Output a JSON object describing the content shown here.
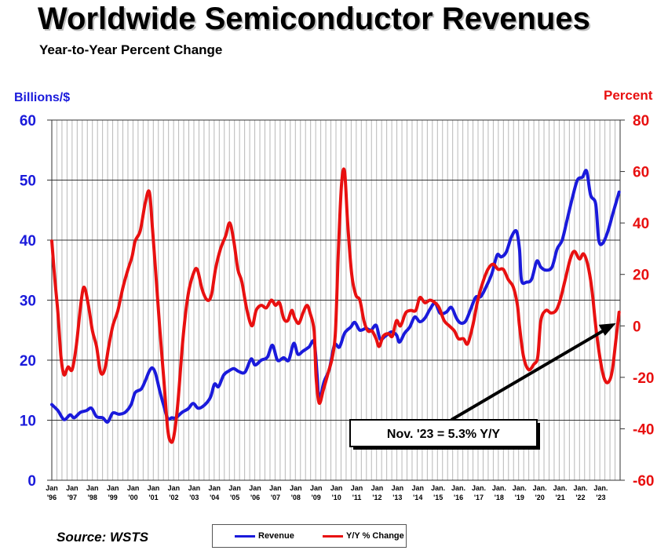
{
  "title": "Worldwide Semiconductor Revenues",
  "subtitle": "Year-to-Year Percent Change",
  "source": "Source: WSTS",
  "chart_data": {
    "type": "line",
    "left_axis": {
      "label": "Billions/$",
      "range": [
        0,
        60
      ],
      "ticks": [
        "0",
        "10",
        "20",
        "30",
        "40",
        "50",
        "60"
      ],
      "color": "#1a1adb"
    },
    "right_axis": {
      "label": "Percent",
      "range": [
        -60,
        80
      ],
      "ticks": [
        "-60",
        "-40",
        "-20",
        "0",
        "20",
        "40",
        "60",
        "80"
      ],
      "color": "#e81010"
    },
    "x_ticks": [
      {
        "top": "Jan",
        "bottom": "'96"
      },
      {
        "top": "Jan",
        "bottom": "'97"
      },
      {
        "top": "Jan",
        "bottom": "'98"
      },
      {
        "top": "Jan",
        "bottom": "'99"
      },
      {
        "top": "Jan",
        "bottom": "'00"
      },
      {
        "top": "Jan",
        "bottom": "'01"
      },
      {
        "top": "Jan",
        "bottom": "'02"
      },
      {
        "top": "Jan",
        "bottom": "'03"
      },
      {
        "top": "Jan",
        "bottom": "'04"
      },
      {
        "top": "Jan",
        "bottom": "'05"
      },
      {
        "top": "Jan",
        "bottom": "'06"
      },
      {
        "top": "Jan",
        "bottom": "'07"
      },
      {
        "top": "Jan",
        "bottom": "'08"
      },
      {
        "top": "Jan",
        "bottom": "'09"
      },
      {
        "top": "Jan",
        "bottom": "'10"
      },
      {
        "top": "Jan",
        "bottom": "'11"
      },
      {
        "top": "Jan",
        "bottom": "'12"
      },
      {
        "top": "Jan",
        "bottom": "'13"
      },
      {
        "top": "Jan",
        "bottom": "'14"
      },
      {
        "top": "Jan.",
        "bottom": "'15"
      },
      {
        "top": "Jan.",
        "bottom": "'16"
      },
      {
        "top": "Jan.",
        "bottom": "'17"
      },
      {
        "top": "Jan.",
        "bottom": "'18"
      },
      {
        "top": "Jan.",
        "bottom": "'19"
      },
      {
        "top": "Jan.",
        "bottom": "'20"
      },
      {
        "top": "Jan.",
        "bottom": "'21"
      },
      {
        "top": "Jan.",
        "bottom": "'22"
      },
      {
        "top": "Jan.",
        "bottom": "'23"
      }
    ],
    "x_range": [
      1996.0,
      2023.95
    ],
    "vertical_grid": true,
    "legend_placement": "bottom",
    "series": [
      {
        "name": "Revenue",
        "axis": "left",
        "color": "#1a1adb",
        "points": [
          [
            1996.0,
            12.6
          ],
          [
            1996.3,
            11.6
          ],
          [
            1996.6,
            10.1
          ],
          [
            1996.9,
            10.9
          ],
          [
            1997.1,
            10.4
          ],
          [
            1997.4,
            11.3
          ],
          [
            1997.7,
            11.6
          ],
          [
            1997.95,
            12.0
          ],
          [
            1998.2,
            10.6
          ],
          [
            1998.5,
            10.4
          ],
          [
            1998.75,
            9.7
          ],
          [
            1999.0,
            11.2
          ],
          [
            1999.3,
            11.0
          ],
          [
            1999.6,
            11.3
          ],
          [
            1999.9,
            12.6
          ],
          [
            2000.1,
            14.6
          ],
          [
            2000.4,
            15.2
          ],
          [
            2000.6,
            16.6
          ],
          [
            2000.8,
            18.2
          ],
          [
            2000.95,
            18.7
          ],
          [
            2001.1,
            17.8
          ],
          [
            2001.3,
            15.0
          ],
          [
            2001.5,
            12.5
          ],
          [
            2001.7,
            10.3
          ],
          [
            2001.9,
            10.4
          ],
          [
            2002.1,
            10.4
          ],
          [
            2002.4,
            11.3
          ],
          [
            2002.7,
            11.9
          ],
          [
            2002.95,
            12.8
          ],
          [
            2003.2,
            12.0
          ],
          [
            2003.5,
            12.5
          ],
          [
            2003.8,
            13.8
          ],
          [
            2004.0,
            16.0
          ],
          [
            2004.2,
            15.6
          ],
          [
            2004.45,
            17.5
          ],
          [
            2004.7,
            18.2
          ],
          [
            2004.95,
            18.6
          ],
          [
            2005.2,
            18.1
          ],
          [
            2005.5,
            18.0
          ],
          [
            2005.8,
            20.2
          ],
          [
            2006.0,
            19.2
          ],
          [
            2006.3,
            20.0
          ],
          [
            2006.6,
            20.5
          ],
          [
            2006.85,
            22.5
          ],
          [
            2007.1,
            20.0
          ],
          [
            2007.4,
            20.4
          ],
          [
            2007.65,
            20.0
          ],
          [
            2007.9,
            22.8
          ],
          [
            2008.1,
            21.0
          ],
          [
            2008.35,
            21.5
          ],
          [
            2008.65,
            22.2
          ],
          [
            2008.9,
            23.0
          ],
          [
            2009.05,
            17.5
          ],
          [
            2009.15,
            13.5
          ],
          [
            2009.4,
            16.5
          ],
          [
            2009.65,
            18.5
          ],
          [
            2009.9,
            22.5
          ],
          [
            2010.15,
            22.2
          ],
          [
            2010.4,
            24.5
          ],
          [
            2010.7,
            25.5
          ],
          [
            2010.9,
            26.3
          ],
          [
            2011.15,
            25.0
          ],
          [
            2011.45,
            25.3
          ],
          [
            2011.7,
            25.0
          ],
          [
            2011.95,
            25.8
          ],
          [
            2012.15,
            23.5
          ],
          [
            2012.4,
            24.0
          ],
          [
            2012.7,
            24.7
          ],
          [
            2012.95,
            24.2
          ],
          [
            2013.1,
            23.0
          ],
          [
            2013.35,
            24.5
          ],
          [
            2013.6,
            25.5
          ],
          [
            2013.85,
            27.2
          ],
          [
            2014.1,
            26.4
          ],
          [
            2014.35,
            27.0
          ],
          [
            2014.6,
            28.5
          ],
          [
            2014.85,
            29.5
          ],
          [
            2015.1,
            27.8
          ],
          [
            2015.4,
            28.0
          ],
          [
            2015.65,
            28.8
          ],
          [
            2015.9,
            27.0
          ],
          [
            2016.1,
            26.2
          ],
          [
            2016.35,
            26.5
          ],
          [
            2016.6,
            28.5
          ],
          [
            2016.85,
            30.5
          ],
          [
            2017.1,
            30.6
          ],
          [
            2017.4,
            32.5
          ],
          [
            2017.65,
            34.5
          ],
          [
            2017.9,
            37.5
          ],
          [
            2018.1,
            37.2
          ],
          [
            2018.35,
            38.0
          ],
          [
            2018.6,
            40.5
          ],
          [
            2018.85,
            41.5
          ],
          [
            2019.0,
            38.5
          ],
          [
            2019.1,
            33.3
          ],
          [
            2019.35,
            33.0
          ],
          [
            2019.6,
            33.5
          ],
          [
            2019.85,
            36.5
          ],
          [
            2020.05,
            35.5
          ],
          [
            2020.3,
            35.0
          ],
          [
            2020.6,
            35.5
          ],
          [
            2020.85,
            38.5
          ],
          [
            2021.1,
            40.0
          ],
          [
            2021.35,
            43.5
          ],
          [
            2021.6,
            47.0
          ],
          [
            2021.85,
            50.0
          ],
          [
            2022.1,
            50.5
          ],
          [
            2022.3,
            51.5
          ],
          [
            2022.5,
            47.5
          ],
          [
            2022.75,
            46.0
          ],
          [
            2022.9,
            40.0
          ],
          [
            2023.1,
            39.5
          ],
          [
            2023.35,
            41.5
          ],
          [
            2023.6,
            44.5
          ],
          [
            2023.9,
            48.0
          ]
        ]
      },
      {
        "name": "Y/Y % Change",
        "axis": "right",
        "color": "#e81010",
        "points": [
          [
            1996.0,
            33
          ],
          [
            1996.15,
            18
          ],
          [
            1996.3,
            5
          ],
          [
            1996.45,
            -12
          ],
          [
            1996.6,
            -19
          ],
          [
            1996.8,
            -16
          ],
          [
            1997.0,
            -17
          ],
          [
            1997.2,
            -8
          ],
          [
            1997.45,
            10
          ],
          [
            1997.6,
            15
          ],
          [
            1997.8,
            8
          ],
          [
            1998.0,
            -2
          ],
          [
            1998.2,
            -8
          ],
          [
            1998.4,
            -18
          ],
          [
            1998.6,
            -17
          ],
          [
            1998.8,
            -8
          ],
          [
            1999.0,
            0
          ],
          [
            1999.25,
            6
          ],
          [
            1999.5,
            15
          ],
          [
            1999.75,
            22
          ],
          [
            1999.95,
            27
          ],
          [
            2000.1,
            33
          ],
          [
            2000.35,
            37
          ],
          [
            2000.6,
            48
          ],
          [
            2000.8,
            52
          ],
          [
            2000.95,
            38
          ],
          [
            2001.1,
            22
          ],
          [
            2001.3,
            0
          ],
          [
            2001.5,
            -20
          ],
          [
            2001.7,
            -40
          ],
          [
            2001.85,
            -45
          ],
          [
            2002.0,
            -43
          ],
          [
            2002.2,
            -30
          ],
          [
            2002.45,
            -5
          ],
          [
            2002.7,
            12
          ],
          [
            2002.95,
            20
          ],
          [
            2003.15,
            22
          ],
          [
            2003.4,
            14
          ],
          [
            2003.65,
            10
          ],
          [
            2003.85,
            12
          ],
          [
            2004.05,
            22
          ],
          [
            2004.3,
            30
          ],
          [
            2004.55,
            35
          ],
          [
            2004.75,
            40
          ],
          [
            2004.95,
            33
          ],
          [
            2005.15,
            22
          ],
          [
            2005.35,
            17
          ],
          [
            2005.6,
            6
          ],
          [
            2005.85,
            0
          ],
          [
            2006.05,
            6
          ],
          [
            2006.3,
            8
          ],
          [
            2006.55,
            7
          ],
          [
            2006.8,
            10
          ],
          [
            2007.0,
            8
          ],
          [
            2007.2,
            9
          ],
          [
            2007.4,
            3
          ],
          [
            2007.6,
            2
          ],
          [
            2007.8,
            6
          ],
          [
            2007.95,
            3
          ],
          [
            2008.15,
            1
          ],
          [
            2008.35,
            5
          ],
          [
            2008.55,
            8
          ],
          [
            2008.7,
            5
          ],
          [
            2008.9,
            -2
          ],
          [
            2009.0,
            -20
          ],
          [
            2009.15,
            -30
          ],
          [
            2009.35,
            -25
          ],
          [
            2009.6,
            -18
          ],
          [
            2009.8,
            -12
          ],
          [
            2009.95,
            -2
          ],
          [
            2010.1,
            30
          ],
          [
            2010.25,
            55
          ],
          [
            2010.4,
            60
          ],
          [
            2010.55,
            40
          ],
          [
            2010.75,
            20
          ],
          [
            2010.95,
            12
          ],
          [
            2011.15,
            10
          ],
          [
            2011.35,
            2
          ],
          [
            2011.55,
            -2
          ],
          [
            2011.75,
            -2
          ],
          [
            2011.95,
            -5
          ],
          [
            2012.1,
            -8
          ],
          [
            2012.3,
            -4
          ],
          [
            2012.55,
            -3
          ],
          [
            2012.75,
            -4
          ],
          [
            2012.95,
            2
          ],
          [
            2013.15,
            0
          ],
          [
            2013.4,
            5
          ],
          [
            2013.65,
            6
          ],
          [
            2013.9,
            6
          ],
          [
            2014.1,
            11
          ],
          [
            2014.35,
            9
          ],
          [
            2014.6,
            10
          ],
          [
            2014.85,
            9
          ],
          [
            2015.05,
            7
          ],
          [
            2015.3,
            2
          ],
          [
            2015.55,
            0
          ],
          [
            2015.8,
            -2
          ],
          [
            2016.0,
            -5
          ],
          [
            2016.25,
            -5
          ],
          [
            2016.45,
            -7
          ],
          [
            2016.7,
            0
          ],
          [
            2016.95,
            10
          ],
          [
            2017.2,
            17
          ],
          [
            2017.45,
            22
          ],
          [
            2017.7,
            24
          ],
          [
            2017.95,
            22
          ],
          [
            2018.2,
            22
          ],
          [
            2018.45,
            18
          ],
          [
            2018.7,
            15
          ],
          [
            2018.9,
            8
          ],
          [
            2019.0,
            0
          ],
          [
            2019.2,
            -12
          ],
          [
            2019.45,
            -17
          ],
          [
            2019.7,
            -15
          ],
          [
            2019.9,
            -12
          ],
          [
            2020.05,
            2
          ],
          [
            2020.3,
            6
          ],
          [
            2020.55,
            5
          ],
          [
            2020.8,
            6
          ],
          [
            2021.0,
            10
          ],
          [
            2021.25,
            18
          ],
          [
            2021.5,
            26
          ],
          [
            2021.7,
            29
          ],
          [
            2021.95,
            26
          ],
          [
            2022.15,
            28
          ],
          [
            2022.35,
            24
          ],
          [
            2022.55,
            15
          ],
          [
            2022.75,
            0
          ],
          [
            2022.95,
            -12
          ],
          [
            2023.15,
            -20
          ],
          [
            2023.35,
            -22
          ],
          [
            2023.55,
            -18
          ],
          [
            2023.75,
            -5
          ],
          [
            2023.9,
            5.3
          ]
        ]
      }
    ],
    "annotation": {
      "text": "Nov. '23 = 5.3% Y/Y",
      "x": 2023.9,
      "y": 5.3,
      "axis": "right"
    }
  },
  "legend": [
    {
      "label": "Revenue",
      "color": "#1a1adb"
    },
    {
      "label": "Y/Y % Change",
      "color": "#e81010"
    }
  ]
}
